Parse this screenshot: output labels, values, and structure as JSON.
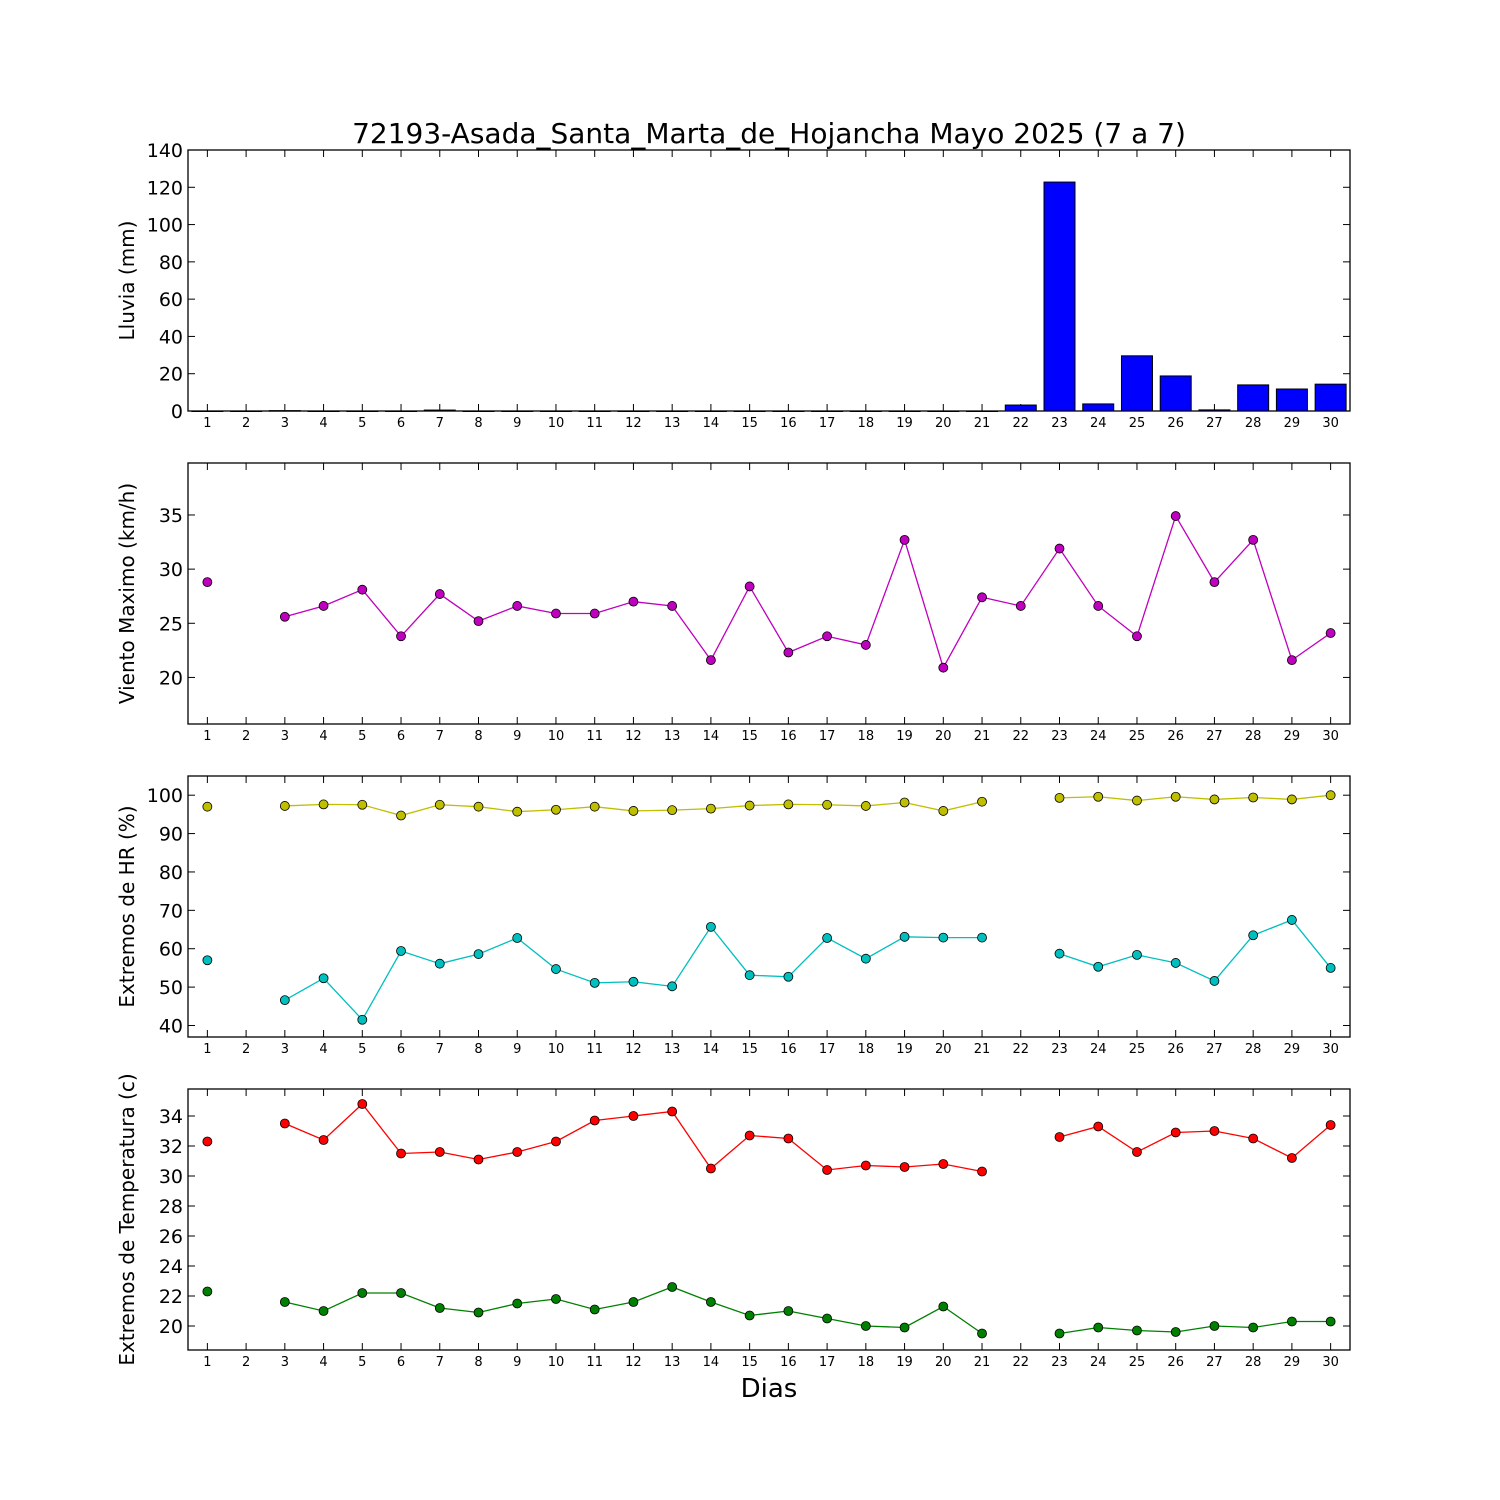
{
  "title": "72193-Asada_Santa_Marta_de_Hojancha Mayo 2025  (7 a 7)",
  "xlabel": "Dias",
  "colors": {
    "rain": "#0000ff",
    "wind": "#bf00bf",
    "hr_max": "#bfbf00",
    "hr_min": "#00bfbf",
    "temp_max": "#ff0000",
    "temp_min": "#008000"
  },
  "chart_data": [
    {
      "type": "bar",
      "ylabel": "Lluvia (mm)",
      "ylim": [
        0,
        140
      ],
      "yticks": [
        0,
        20,
        40,
        60,
        80,
        100,
        120,
        140
      ],
      "xlim": [
        0.5,
        30.5
      ],
      "categories": [
        1,
        2,
        3,
        4,
        5,
        6,
        7,
        8,
        9,
        10,
        11,
        12,
        13,
        14,
        15,
        16,
        17,
        18,
        19,
        20,
        21,
        22,
        23,
        24,
        25,
        26,
        27,
        28,
        29,
        30
      ],
      "series": [
        {
          "color": "#0000ff",
          "values": [
            0,
            0,
            0.2,
            0,
            0,
            0,
            0.5,
            0,
            0,
            0,
            0,
            0,
            0,
            0,
            0,
            0,
            0,
            0,
            0,
            0,
            0,
            3.2,
            122.8,
            3.8,
            29.6,
            18.8,
            0.6,
            14.0,
            11.8,
            14.4
          ]
        }
      ]
    },
    {
      "type": "line",
      "ylabel": "Viento Maximo (km/h)",
      "ylim": [
        15.7,
        39.8
      ],
      "yticks": [
        20,
        25,
        30,
        35
      ],
      "xlim": [
        0.5,
        30.5
      ],
      "categories": [
        1,
        2,
        3,
        4,
        5,
        6,
        7,
        8,
        9,
        10,
        11,
        12,
        13,
        14,
        15,
        16,
        17,
        18,
        19,
        20,
        21,
        22,
        23,
        24,
        25,
        26,
        27,
        28,
        29,
        30
      ],
      "series": [
        {
          "color": "#bf00bf",
          "values": [
            28.8,
            null,
            25.6,
            26.6,
            28.1,
            23.8,
            27.7,
            25.2,
            26.6,
            25.9,
            25.9,
            27.0,
            26.6,
            21.6,
            28.4,
            22.3,
            23.8,
            23.0,
            32.7,
            20.9,
            27.4,
            26.6,
            31.9,
            26.6,
            23.8,
            34.9,
            28.8,
            32.7,
            21.6,
            24.1
          ]
        }
      ]
    },
    {
      "type": "line",
      "ylabel": "Extremos de HR (%)",
      "ylim": [
        37,
        105
      ],
      "yticks": [
        40,
        50,
        60,
        70,
        80,
        90,
        100
      ],
      "xlim": [
        0.5,
        30.5
      ],
      "categories": [
        1,
        2,
        3,
        4,
        5,
        6,
        7,
        8,
        9,
        10,
        11,
        12,
        13,
        14,
        15,
        16,
        17,
        18,
        19,
        20,
        21,
        22,
        23,
        24,
        25,
        26,
        27,
        28,
        29,
        30
      ],
      "series": [
        {
          "color": "#bfbf00",
          "values": [
            97,
            null,
            97.2,
            97.6,
            97.5,
            94.7,
            97.5,
            97,
            95.7,
            96.2,
            97,
            95.9,
            96.1,
            96.5,
            97.3,
            97.6,
            97.5,
            97.2,
            98.1,
            95.9,
            98.3,
            null,
            99.3,
            99.6,
            98.6,
            99.6,
            98.9,
            99.4,
            98.9,
            100
          ]
        },
        {
          "color": "#00bfbf",
          "values": [
            57,
            null,
            46.6,
            52.3,
            41.5,
            59.4,
            56.1,
            58.6,
            62.8,
            54.7,
            51.1,
            51.4,
            50.2,
            65.7,
            53.1,
            52.7,
            62.8,
            57.4,
            63.1,
            62.9,
            62.9,
            null,
            58.7,
            55.3,
            58.4,
            56.3,
            51.6,
            63.5,
            67.5,
            55
          ]
        }
      ]
    },
    {
      "type": "line",
      "ylabel": "Extremos de Temperatura (c)",
      "ylim": [
        18.4,
        35.8
      ],
      "yticks": [
        20,
        22,
        24,
        26,
        28,
        30,
        32,
        34
      ],
      "xlim": [
        0.5,
        30.5
      ],
      "categories": [
        1,
        2,
        3,
        4,
        5,
        6,
        7,
        8,
        9,
        10,
        11,
        12,
        13,
        14,
        15,
        16,
        17,
        18,
        19,
        20,
        21,
        22,
        23,
        24,
        25,
        26,
        27,
        28,
        29,
        30
      ],
      "series": [
        {
          "color": "#ff0000",
          "values": [
            32.3,
            null,
            33.5,
            32.4,
            34.8,
            31.5,
            31.6,
            31.1,
            31.6,
            32.3,
            33.7,
            34.0,
            34.3,
            30.5,
            32.7,
            32.5,
            30.4,
            30.7,
            30.6,
            30.8,
            30.3,
            null,
            32.6,
            33.3,
            31.6,
            32.9,
            33.0,
            32.5,
            31.2,
            33.4
          ]
        },
        {
          "color": "#008000",
          "values": [
            22.3,
            null,
            21.6,
            21.0,
            22.2,
            22.2,
            21.2,
            20.9,
            21.5,
            21.8,
            21.1,
            21.6,
            22.6,
            21.6,
            20.7,
            21.0,
            20.5,
            20.0,
            19.9,
            21.3,
            19.5,
            null,
            19.5,
            19.9,
            19.7,
            19.6,
            20.0,
            19.9,
            20.3,
            20.3
          ]
        }
      ]
    }
  ]
}
